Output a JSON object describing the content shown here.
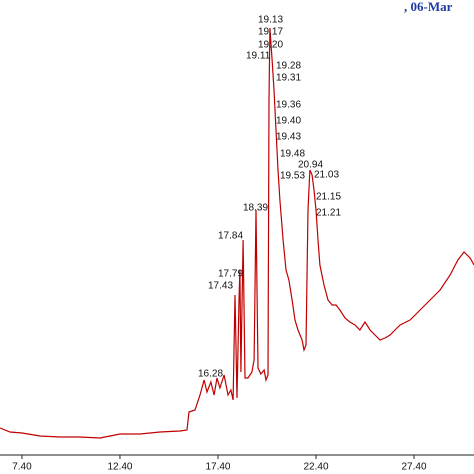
{
  "chart_data": {
    "type": "line",
    "header": ", 06-Mar",
    "color": "#c00000",
    "x": [
      6.28,
      6.79,
      7.4,
      8.32,
      9.34,
      10.36,
      11.38,
      11.89,
      12.4,
      13.42,
      14.44,
      15.46,
      15.82,
      15.92,
      16.23,
      16.48,
      16.69,
      16.84,
      17.04,
      17.2,
      17.35,
      17.5,
      17.71,
      17.91,
      18.06,
      18.17,
      18.27,
      18.37,
      18.47,
      18.52,
      18.57,
      18.68,
      18.78,
      18.93,
      19.13,
      19.24,
      19.34,
      19.44,
      19.59,
      19.75,
      19.85,
      19.95,
      20.0,
      20.05,
      20.16,
      20.26,
      20.36,
      20.46,
      20.56,
      20.72,
      20.87,
      21.02,
      21.18,
      21.33,
      21.48,
      21.69,
      21.79,
      21.89,
      21.99,
      22.09,
      22.2,
      22.3,
      22.4,
      22.5,
      22.6,
      22.81,
      23.01,
      23.22,
      23.42,
      23.62,
      23.88,
      24.13,
      24.39,
      24.64,
      24.9,
      25.16,
      25.41,
      25.67,
      25.92,
      26.18,
      26.43,
      26.69,
      27.2,
      27.71,
      28.22,
      28.73,
      29.24,
      29.64,
      29.95,
      30.26,
      30.46
    ],
    "values": [
      22,
      18,
      17,
      14,
      13,
      13,
      12,
      14,
      16,
      16,
      18,
      19,
      20,
      38,
      40,
      55,
      70,
      58,
      68,
      55,
      72,
      62,
      75,
      55,
      60,
      50,
      155,
      52,
      150,
      180,
      78,
      210,
      72,
      72,
      78,
      90,
      240,
      82,
      76,
      80,
      70,
      75,
      350,
      422,
      390,
      360,
      320,
      280,
      250,
      210,
      180,
      170,
      150,
      130,
      120,
      110,
      100,
      105,
      240,
      280,
      275,
      260,
      240,
      210,
      185,
      165,
      150,
      145,
      145,
      140,
      132,
      128,
      125,
      120,
      128,
      120,
      115,
      110,
      112,
      115,
      120,
      125,
      130,
      140,
      150,
      160,
      175,
      190,
      198,
      192,
      185
    ],
    "xlim": [
      6.28,
      30.46
    ],
    "ylim": [
      0,
      450
    ],
    "xticks": [
      {
        "value": 7.4,
        "label": "7.40"
      },
      {
        "value": 12.4,
        "label": "12.40"
      },
      {
        "value": 17.4,
        "label": "17.40"
      },
      {
        "value": 22.4,
        "label": "22.40"
      },
      {
        "value": 27.4,
        "label": "27.40"
      }
    ],
    "annotations": [
      "16.28",
      "17.43",
      "17.79",
      "17.84",
      "18.39",
      "19.11",
      "19.13",
      "19.17",
      "19.20",
      "19.28",
      "19.31",
      "19.36",
      "19.40",
      "19.43",
      "19.48",
      "19.53",
      "20.94",
      "21.03",
      "21.15",
      "21.21"
    ]
  }
}
